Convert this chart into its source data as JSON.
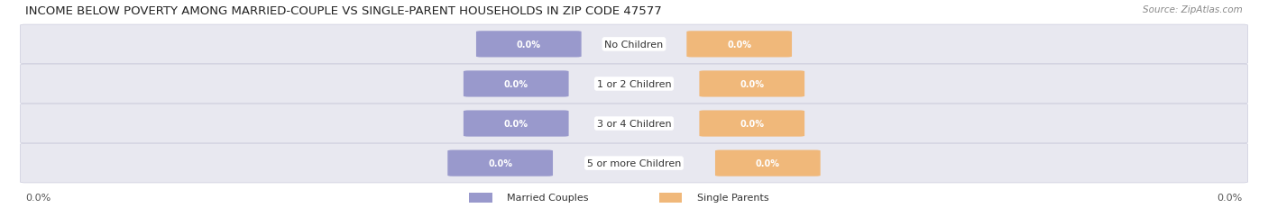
{
  "title": "INCOME BELOW POVERTY AMONG MARRIED-COUPLE VS SINGLE-PARENT HOUSEHOLDS IN ZIP CODE 47577",
  "source": "Source: ZipAtlas.com",
  "categories": [
    "No Children",
    "1 or 2 Children",
    "3 or 4 Children",
    "5 or more Children"
  ],
  "married_values": [
    "0.0%",
    "0.0%",
    "0.0%",
    "0.0%"
  ],
  "single_values": [
    "0.0%",
    "0.0%",
    "0.0%",
    "0.0%"
  ],
  "married_color": "#9999cc",
  "single_color": "#f0b87a",
  "bar_bg_color": "#e8e8f0",
  "axis_label_left": "0.0%",
  "axis_label_right": "0.0%",
  "legend_married": "Married Couples",
  "legend_single": "Single Parents",
  "title_fontsize": 9.5,
  "source_fontsize": 7.5,
  "label_fontsize": 8,
  "background_color": "#ffffff"
}
